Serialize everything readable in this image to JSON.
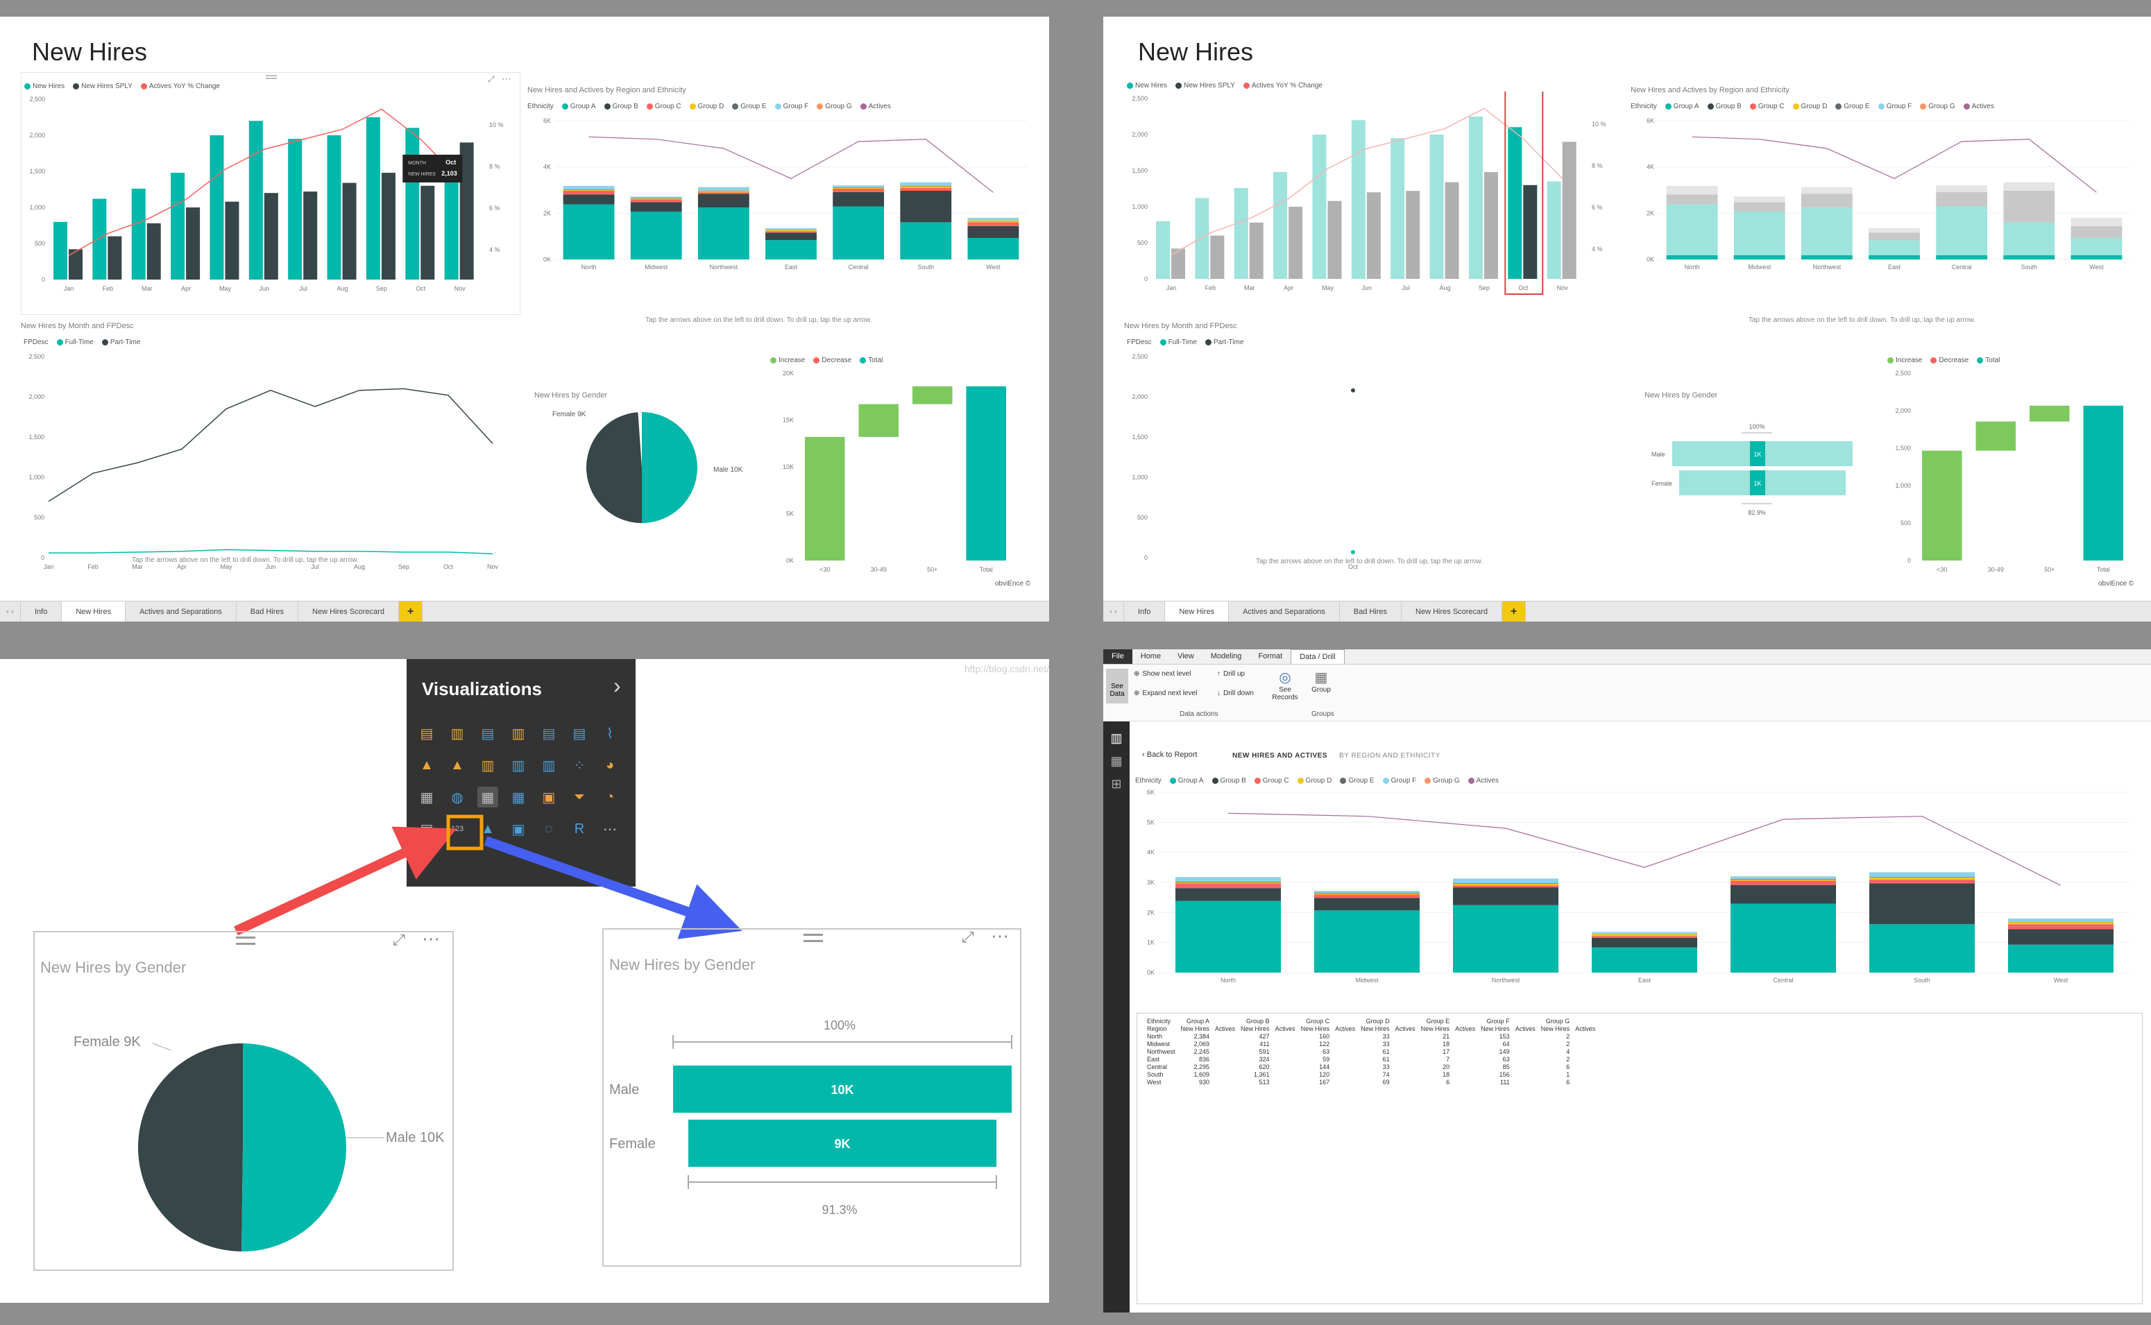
{
  "report": {
    "title": "New Hires",
    "tabs": [
      "Info",
      "New Hires",
      "Actives and Separations",
      "Bad Hires",
      "New Hires Scorecard"
    ],
    "add_tab": "+",
    "brand": "obviEnce ©",
    "drill_hint": "Tap the arrows above on the left to drill down. To drill up, tap the up arrow."
  },
  "colors": {
    "teal": "#01b8aa",
    "dark": "#374649",
    "red": "#fd625e",
    "yellow": "#f2c80f",
    "grey": "#5f6b6d",
    "lightblue": "#8ad4eb",
    "orange": "#fe9666",
    "purple": "#a66999",
    "green": "#7dc95e",
    "paleteal": "#9ee3dc",
    "gray2": "#b0b0b0"
  },
  "monthly": {
    "legend": [
      "New Hires",
      "New Hires SPLY",
      "Actives YoY % Change"
    ],
    "months": [
      "Jan",
      "Feb",
      "Mar",
      "Apr",
      "May",
      "Jun",
      "Jul",
      "Aug",
      "Sep",
      "Oct",
      "Nov"
    ],
    "new_hires": [
      800,
      1120,
      1260,
      1480,
      2000,
      2200,
      1950,
      2000,
      2250,
      2103,
      1350
    ],
    "sply": [
      420,
      600,
      780,
      1000,
      1080,
      1200,
      1220,
      1340,
      1480,
      1300,
      1900
    ],
    "yoy": [
      3.2,
      4.3,
      5.0,
      6.0,
      7.5,
      8.5,
      9.0,
      9.5,
      10.5,
      9.0,
      7.0
    ],
    "yticks": [
      "2,500",
      "2,000",
      "1,500",
      "1,000",
      "500",
      "0"
    ],
    "y2ticks": [
      "10 %",
      "8 %",
      "6 %",
      "4 %"
    ],
    "tooltip": {
      "month_label": "MONTH",
      "month_value": "Oct",
      "hires_label": "NEW HIRES",
      "hires_value": "2,103"
    }
  },
  "region": {
    "title": "New Hires and Actives by Region and Ethnicity",
    "legend_title": "Ethnicity",
    "legend": [
      "Group A",
      "Group B",
      "Group C",
      "Group D",
      "Group E",
      "Group F",
      "Group G",
      "Actives"
    ],
    "regions": [
      "North",
      "Midwest",
      "Northwest",
      "East",
      "Central",
      "South",
      "West"
    ],
    "yticks": [
      "6K",
      "4K",
      "2K",
      "0K"
    ],
    "yticks_full": [
      "6K",
      "5K",
      "4K",
      "3K",
      "2K",
      "1K",
      "0K"
    ],
    "stacks": [
      [
        2384,
        427,
        160,
        33,
        21,
        153,
        2
      ],
      [
        2069,
        411,
        122,
        33,
        18,
        64,
        2
      ],
      [
        2245,
        591,
        63,
        61,
        17,
        149,
        4
      ],
      [
        836,
        324,
        59,
        61,
        7,
        63,
        2
      ],
      [
        2295,
        620,
        144,
        33,
        20,
        85,
        6
      ],
      [
        1609,
        1361,
        120,
        74,
        18,
        156,
        1
      ],
      [
        930,
        513,
        167,
        69,
        6,
        111,
        6
      ]
    ],
    "actives": [
      5.3,
      5.2,
      4.8,
      3.5,
      5.1,
      5.2,
      2.9
    ]
  },
  "fpdesc": {
    "title": "New Hires by Month and FPDesc",
    "legend_title": "FPDesc",
    "legend": [
      "Full-Time",
      "Part-Time"
    ],
    "yticks": [
      "2,500",
      "2,000",
      "1,500",
      "1,000",
      "500",
      "0"
    ],
    "months": [
      "Jan",
      "Feb",
      "Mar",
      "Apr",
      "May",
      "Jun",
      "Jul",
      "Aug",
      "Sep",
      "Oct",
      "Nov"
    ],
    "parttime": [
      700,
      1050,
      1180,
      1350,
      1850,
      2080,
      1880,
      2080,
      2100,
      2020,
      1420
    ],
    "fulltime": [
      60,
      60,
      70,
      80,
      100,
      90,
      80,
      80,
      70,
      70,
      50
    ],
    "oct_label": "Oct"
  },
  "gender": {
    "title": "New Hires by Gender",
    "female_label": "Female 9K",
    "male_label": "Male 10K",
    "male": "Male",
    "female": "Female",
    "male_val": "10K",
    "female_val": "9K",
    "male_small": "1K",
    "female_small": "1K",
    "top_pct": "100%",
    "bottom_pct": "91.3%",
    "bottom_pct_small": "82.9%"
  },
  "waterfall": {
    "legend": [
      "Increase",
      "Decrease",
      "Total"
    ],
    "cats": [
      "<30",
      "30-49",
      "50+",
      "Total"
    ],
    "yticks": [
      "20K",
      "15K",
      "10K",
      "5K",
      "0K"
    ],
    "yticks2": [
      "2,500",
      "2,000",
      "1,500",
      "1,000",
      "500",
      "0"
    ],
    "steps": [
      13.2,
      3.5,
      1.9
    ]
  },
  "viz_pane": {
    "title": "Visualizations",
    "chevron": "›"
  },
  "watermark": "http://blog.csdn.net/...",
  "ribbon": {
    "tabs": [
      "File",
      "Home",
      "View",
      "Modeling",
      "Format",
      "Data / Drill"
    ],
    "see_data": "See Data",
    "show_next": "Show next level",
    "expand_next": "Expand next level",
    "drill_up": "Drill up",
    "drill_down": "Drill down",
    "see_records": "See Records",
    "group": "Group",
    "section_data": "Data actions",
    "section_groups": "Groups"
  },
  "drill": {
    "back": "Back to Report",
    "crumb1": "NEW HIRES AND ACTIVES",
    "crumb2": "BY REGION AND ETHNICITY",
    "table_head1": [
      "Ethnicity",
      "Group A",
      "",
      "Group B",
      "",
      "Group C",
      "",
      "Group D",
      "",
      "Group E",
      "",
      "Group F",
      "",
      "Group G",
      ""
    ],
    "table_head2": [
      "Region",
      "New Hires",
      "Actives",
      "New Hires",
      "Actives",
      "New Hires",
      "Actives",
      "New Hires",
      "Actives",
      "New Hires",
      "Actives",
      "New Hires",
      "Actives",
      "New Hires",
      "Actives"
    ],
    "rows": [
      [
        "North",
        "2,384",
        "",
        "427",
        "",
        "160",
        "",
        "33",
        "",
        "21",
        "",
        "153",
        "",
        "2",
        ""
      ],
      [
        "Midwest",
        "2,069",
        "",
        "411",
        "",
        "122",
        "",
        "33",
        "",
        "18",
        "",
        "64",
        "",
        "2",
        ""
      ],
      [
        "Northwest",
        "2,245",
        "",
        "591",
        "",
        "63",
        "",
        "61",
        "",
        "17",
        "",
        "149",
        "",
        "4",
        ""
      ],
      [
        "East",
        "836",
        "",
        "324",
        "",
        "59",
        "",
        "61",
        "",
        "7",
        "",
        "63",
        "",
        "2",
        ""
      ],
      [
        "Central",
        "2,295",
        "",
        "620",
        "",
        "144",
        "",
        "33",
        "",
        "20",
        "",
        "85",
        "",
        "6",
        ""
      ],
      [
        "South",
        "1,609",
        "",
        "1,361",
        "",
        "120",
        "",
        "74",
        "",
        "18",
        "",
        "156",
        "",
        "1",
        ""
      ],
      [
        "West",
        "930",
        "",
        "513",
        "",
        "167",
        "",
        "69",
        "",
        "6",
        "",
        "111",
        "",
        "6",
        ""
      ]
    ]
  }
}
